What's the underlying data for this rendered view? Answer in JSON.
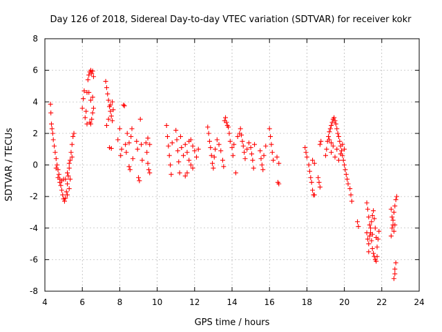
{
  "chart_data": {
    "type": "scatter",
    "title": "Day 126 of 2018, Sidereal Day-to-day VTEC variation (SDTVAR) for receiver kokr",
    "xlabel": "GPS time / hours",
    "ylabel": "SDTVAR / TECUs",
    "xlim": [
      4,
      24
    ],
    "ylim": [
      -8,
      8
    ],
    "xticks": [
      4,
      6,
      8,
      10,
      12,
      14,
      16,
      18,
      20,
      22,
      24
    ],
    "yticks": [
      -8,
      -6,
      -4,
      -2,
      0,
      2,
      4,
      6,
      8
    ],
    "xtick_labels": [
      "4",
      "6",
      "8",
      "10",
      "12",
      "14",
      "16",
      "18",
      "20",
      "22",
      "24"
    ],
    "ytick_labels": [
      "-8",
      "-6",
      "-4",
      "-2",
      "0",
      "2",
      "4",
      "6",
      "8"
    ],
    "grid": true,
    "marker": "plus",
    "series": [
      {
        "name": "SDTVAR",
        "color": "#ff0000",
        "points": [
          [
            4.3,
            3.85
          ],
          [
            4.32,
            3.3
          ],
          [
            4.35,
            2.6
          ],
          [
            4.38,
            2.3
          ],
          [
            4.42,
            2.0
          ],
          [
            4.45,
            1.6
          ],
          [
            4.5,
            1.2
          ],
          [
            4.55,
            0.8
          ],
          [
            4.6,
            0.4
          ],
          [
            4.65,
            0.0
          ],
          [
            4.7,
            -0.3
          ],
          [
            4.75,
            -0.6
          ],
          [
            4.8,
            -0.9
          ],
          [
            4.85,
            -1.3
          ],
          [
            4.9,
            -1.6
          ],
          [
            4.95,
            -1.9
          ],
          [
            5.0,
            -2.15
          ],
          [
            5.05,
            -2.3
          ],
          [
            5.1,
            -2.1
          ],
          [
            5.15,
            -1.7
          ],
          [
            5.2,
            -1.2
          ],
          [
            5.25,
            -0.7
          ],
          [
            5.3,
            -0.2
          ],
          [
            5.35,
            0.3
          ],
          [
            5.4,
            0.8
          ],
          [
            5.45,
            1.3
          ],
          [
            5.5,
            1.8
          ],
          [
            5.55,
            2.0
          ],
          [
            4.6,
            -0.2
          ],
          [
            4.7,
            -0.8
          ],
          [
            4.8,
            -1.1
          ],
          [
            4.9,
            -1.0
          ],
          [
            5.0,
            -0.9
          ],
          [
            5.1,
            -0.9
          ],
          [
            5.2,
            -0.5
          ],
          [
            5.3,
            0.1
          ],
          [
            5.2,
            -1.9
          ],
          [
            5.3,
            -1.5
          ],
          [
            5.35,
            -0.9
          ],
          [
            5.45,
            0.5
          ],
          [
            6.0,
            3.6
          ],
          [
            6.05,
            4.2
          ],
          [
            6.1,
            4.7
          ],
          [
            6.15,
            3.0
          ],
          [
            6.2,
            3.4
          ],
          [
            6.25,
            4.6
          ],
          [
            6.3,
            5.4
          ],
          [
            6.35,
            5.7
          ],
          [
            6.4,
            5.9
          ],
          [
            6.45,
            6.0
          ],
          [
            6.5,
            5.8
          ],
          [
            6.55,
            5.95
          ],
          [
            6.6,
            5.6
          ],
          [
            6.4,
            2.7
          ],
          [
            6.45,
            2.6
          ],
          [
            6.5,
            2.9
          ],
          [
            6.55,
            3.3
          ],
          [
            6.6,
            3.6
          ],
          [
            6.35,
            4.6
          ],
          [
            6.45,
            4.1
          ],
          [
            6.55,
            4.3
          ],
          [
            6.25,
            2.6
          ],
          [
            7.25,
            5.3
          ],
          [
            7.3,
            4.9
          ],
          [
            7.35,
            4.5
          ],
          [
            7.4,
            4.1
          ],
          [
            7.45,
            3.7
          ],
          [
            7.5,
            3.4
          ],
          [
            7.55,
            3.1
          ],
          [
            7.6,
            2.8
          ],
          [
            7.3,
            2.5
          ],
          [
            7.4,
            2.9
          ],
          [
            7.5,
            3.8
          ],
          [
            7.6,
            4.0
          ],
          [
            7.65,
            3.5
          ],
          [
            7.45,
            1.1
          ],
          [
            7.55,
            1.05
          ],
          [
            7.9,
            1.6
          ],
          [
            8.0,
            2.3
          ],
          [
            8.05,
            0.6
          ],
          [
            8.1,
            1.0
          ],
          [
            8.2,
            3.8
          ],
          [
            8.25,
            3.75
          ],
          [
            8.3,
            1.3
          ],
          [
            8.35,
            0.8
          ],
          [
            8.4,
            2.0
          ],
          [
            8.5,
            1.4
          ],
          [
            8.5,
            -0.1
          ],
          [
            8.55,
            -0.3
          ],
          [
            8.6,
            1.8
          ],
          [
            8.65,
            2.3
          ],
          [
            8.7,
            0.4
          ],
          [
            8.9,
            1.5
          ],
          [
            8.95,
            1.0
          ],
          [
            9.0,
            -0.8
          ],
          [
            9.05,
            -1.0
          ],
          [
            9.1,
            2.9
          ],
          [
            9.15,
            1.3
          ],
          [
            9.2,
            0.3
          ],
          [
            9.4,
            1.4
          ],
          [
            9.45,
            0.8
          ],
          [
            9.5,
            0.1
          ],
          [
            9.55,
            -0.3
          ],
          [
            9.6,
            -0.5
          ],
          [
            9.5,
            1.7
          ],
          [
            9.6,
            1.3
          ],
          [
            10.5,
            2.5
          ],
          [
            10.55,
            1.8
          ],
          [
            10.6,
            1.2
          ],
          [
            10.65,
            0.6
          ],
          [
            10.7,
            0.0
          ],
          [
            10.75,
            -0.6
          ],
          [
            10.8,
            1.4
          ],
          [
            11.0,
            2.2
          ],
          [
            11.05,
            1.6
          ],
          [
            11.1,
            0.9
          ],
          [
            11.15,
            0.2
          ],
          [
            11.2,
            -0.5
          ],
          [
            11.25,
            1.8
          ],
          [
            11.3,
            1.1
          ],
          [
            11.4,
            0.6
          ],
          [
            11.5,
            1.3
          ],
          [
            11.6,
            0.8
          ],
          [
            11.7,
            0.3
          ],
          [
            11.8,
            1.6
          ],
          [
            11.9,
            1.2
          ],
          [
            12.0,
            0.9
          ],
          [
            12.1,
            0.5
          ],
          [
            12.2,
            1.0
          ],
          [
            11.5,
            -0.7
          ],
          [
            11.6,
            -0.5
          ],
          [
            11.8,
            0.0
          ],
          [
            11.9,
            -0.2
          ],
          [
            11.7,
            1.5
          ],
          [
            12.7,
            2.4
          ],
          [
            12.75,
            2.0
          ],
          [
            12.8,
            1.5
          ],
          [
            12.85,
            1.1
          ],
          [
            12.9,
            0.6
          ],
          [
            12.95,
            0.1
          ],
          [
            13.0,
            -0.2
          ],
          [
            13.05,
            0.5
          ],
          [
            13.1,
            1.0
          ],
          [
            13.2,
            1.6
          ],
          [
            13.3,
            1.3
          ],
          [
            13.4,
            0.9
          ],
          [
            13.5,
            0.3
          ],
          [
            13.55,
            -0.1
          ],
          [
            13.6,
            2.8
          ],
          [
            13.65,
            3.0
          ],
          [
            13.7,
            2.7
          ],
          [
            13.75,
            2.5
          ],
          [
            13.8,
            2.4
          ],
          [
            13.85,
            2.0
          ],
          [
            13.9,
            1.5
          ],
          [
            14.0,
            1.1
          ],
          [
            14.05,
            0.6
          ],
          [
            14.1,
            1.3
          ],
          [
            14.2,
            -0.5
          ],
          [
            14.3,
            1.8
          ],
          [
            14.4,
            2.0
          ],
          [
            14.45,
            2.3
          ],
          [
            14.5,
            1.9
          ],
          [
            14.55,
            1.5
          ],
          [
            14.6,
            1.2
          ],
          [
            14.65,
            0.8
          ],
          [
            14.7,
            0.4
          ],
          [
            14.8,
            1.0
          ],
          [
            14.9,
            1.4
          ],
          [
            15.0,
            1.1
          ],
          [
            15.05,
            0.7
          ],
          [
            15.1,
            0.3
          ],
          [
            15.15,
            -0.2
          ],
          [
            15.2,
            1.3
          ],
          [
            15.5,
            0.9
          ],
          [
            15.55,
            0.4
          ],
          [
            15.6,
            0.0
          ],
          [
            15.65,
            -0.3
          ],
          [
            15.7,
            0.6
          ],
          [
            15.8,
            1.2
          ],
          [
            16.0,
            2.3
          ],
          [
            16.05,
            1.8
          ],
          [
            16.1,
            1.3
          ],
          [
            16.15,
            0.8
          ],
          [
            16.2,
            0.3
          ],
          [
            16.4,
            0.5
          ],
          [
            16.5,
            0.1
          ],
          [
            16.45,
            -1.1
          ],
          [
            16.5,
            -1.2
          ],
          [
            17.9,
            1.1
          ],
          [
            17.95,
            0.8
          ],
          [
            18.0,
            0.5
          ],
          [
            18.1,
            0.0
          ],
          [
            18.15,
            -0.4
          ],
          [
            18.2,
            -0.8
          ],
          [
            18.25,
            -1.1
          ],
          [
            18.3,
            -1.6
          ],
          [
            18.35,
            -1.9
          ],
          [
            18.4,
            -1.9
          ],
          [
            18.3,
            0.3
          ],
          [
            18.4,
            0.1
          ],
          [
            18.6,
            -0.8
          ],
          [
            18.65,
            -1.1
          ],
          [
            18.7,
            -1.4
          ],
          [
            18.7,
            1.3
          ],
          [
            18.75,
            1.5
          ],
          [
            19.0,
            0.6
          ],
          [
            19.05,
            1.0
          ],
          [
            19.1,
            1.5
          ],
          [
            19.15,
            1.8
          ],
          [
            19.2,
            2.1
          ],
          [
            19.25,
            2.3
          ],
          [
            19.3,
            2.5
          ],
          [
            19.35,
            2.7
          ],
          [
            19.4,
            2.9
          ],
          [
            19.45,
            3.0
          ],
          [
            19.5,
            2.8
          ],
          [
            19.55,
            2.6
          ],
          [
            19.6,
            2.3
          ],
          [
            19.65,
            2.0
          ],
          [
            19.7,
            1.8
          ],
          [
            19.75,
            1.5
          ],
          [
            19.8,
            1.2
          ],
          [
            19.85,
            0.9
          ],
          [
            19.9,
            0.6
          ],
          [
            19.95,
            0.3
          ],
          [
            20.0,
            0.0
          ],
          [
            20.05,
            -0.3
          ],
          [
            20.1,
            -0.6
          ],
          [
            20.15,
            -0.9
          ],
          [
            20.2,
            -1.2
          ],
          [
            20.3,
            -1.5
          ],
          [
            20.35,
            -1.9
          ],
          [
            20.4,
            -2.3
          ],
          [
            19.3,
            0.8
          ],
          [
            19.4,
            1.2
          ],
          [
            19.5,
            0.5
          ],
          [
            19.6,
            1.0
          ],
          [
            19.7,
            0.3
          ],
          [
            19.8,
            0.7
          ],
          [
            19.9,
            1.3
          ],
          [
            20.0,
            1.0
          ],
          [
            19.2,
            1.6
          ],
          [
            19.3,
            1.4
          ],
          [
            20.7,
            -3.6
          ],
          [
            20.75,
            -3.9
          ],
          [
            21.2,
            -2.4
          ],
          [
            21.25,
            -2.8
          ],
          [
            21.3,
            -3.3
          ],
          [
            21.35,
            -3.8
          ],
          [
            21.4,
            -4.3
          ],
          [
            21.45,
            -4.8
          ],
          [
            21.5,
            -5.3
          ],
          [
            21.55,
            -5.6
          ],
          [
            21.6,
            -5.8
          ],
          [
            21.65,
            -6.0
          ],
          [
            21.7,
            -6.1
          ],
          [
            21.75,
            -5.8
          ],
          [
            21.2,
            -4.3
          ],
          [
            21.25,
            -4.7
          ],
          [
            21.3,
            -5.0
          ],
          [
            21.35,
            -4.5
          ],
          [
            21.4,
            -4.0
          ],
          [
            21.45,
            -3.6
          ],
          [
            21.5,
            -3.2
          ],
          [
            21.55,
            -2.9
          ],
          [
            21.6,
            -3.4
          ],
          [
            21.65,
            -4.0
          ],
          [
            21.7,
            -4.6
          ],
          [
            21.75,
            -5.2
          ],
          [
            21.8,
            -4.7
          ],
          [
            21.85,
            -4.2
          ],
          [
            21.3,
            -5.5
          ],
          [
            21.5,
            -4.4
          ],
          [
            22.5,
            -2.8
          ],
          [
            22.55,
            -3.3
          ],
          [
            22.6,
            -3.8
          ],
          [
            22.65,
            -4.2
          ],
          [
            22.5,
            -4.5
          ],
          [
            22.55,
            -4.0
          ],
          [
            22.6,
            -3.5
          ],
          [
            22.65,
            -3.0
          ],
          [
            22.7,
            -2.6
          ],
          [
            22.75,
            -2.2
          ],
          [
            22.8,
            -2.0
          ],
          [
            22.7,
            -3.8
          ],
          [
            22.75,
            -6.2
          ],
          [
            22.7,
            -6.6
          ],
          [
            22.65,
            -7.2
          ],
          [
            22.7,
            -6.9
          ]
        ]
      }
    ]
  }
}
